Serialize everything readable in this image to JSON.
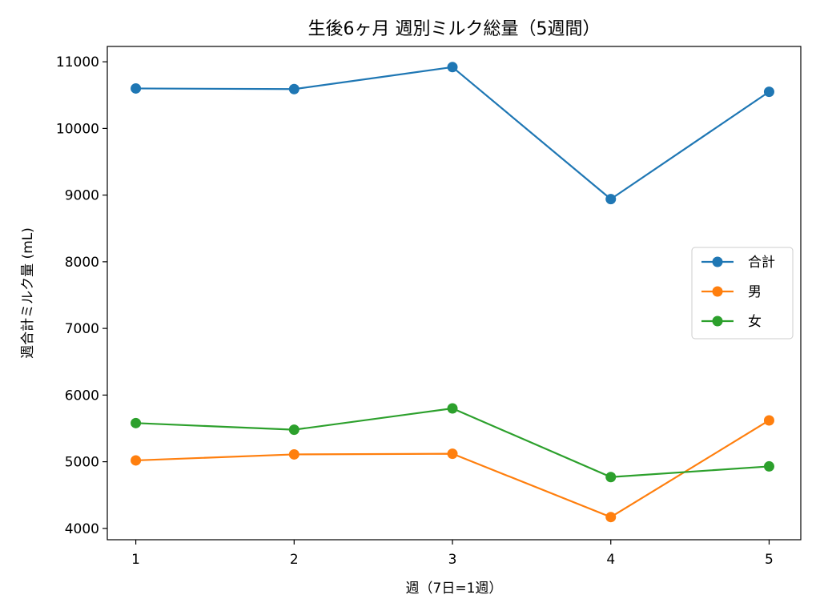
{
  "chart_data": {
    "type": "line",
    "title": "生後6ヶ月 週別ミルク総量（5週間）",
    "xlabel": "週（7日=1週）",
    "ylabel": "週合計ミルク量 (mL)",
    "x": [
      1,
      2,
      3,
      4,
      5
    ],
    "xticks": [
      "1",
      "2",
      "3",
      "4",
      "5"
    ],
    "xlim": [
      0.82,
      5.2
    ],
    "ylim": [
      3830,
      11230
    ],
    "yticks": [
      "4000",
      "5000",
      "6000",
      "7000",
      "8000",
      "9000",
      "10000",
      "11000"
    ],
    "grid": false,
    "legend_position": "center-right",
    "series": [
      {
        "name": "合計",
        "color": "#1f77b4",
        "values": [
          10600,
          10590,
          10920,
          8940,
          10550
        ]
      },
      {
        "name": "男",
        "color": "#ff7f0e",
        "values": [
          5020,
          5110,
          5120,
          4170,
          5620
        ]
      },
      {
        "name": "女",
        "color": "#2ca02c",
        "values": [
          5580,
          5480,
          5800,
          4770,
          4930
        ]
      }
    ]
  }
}
